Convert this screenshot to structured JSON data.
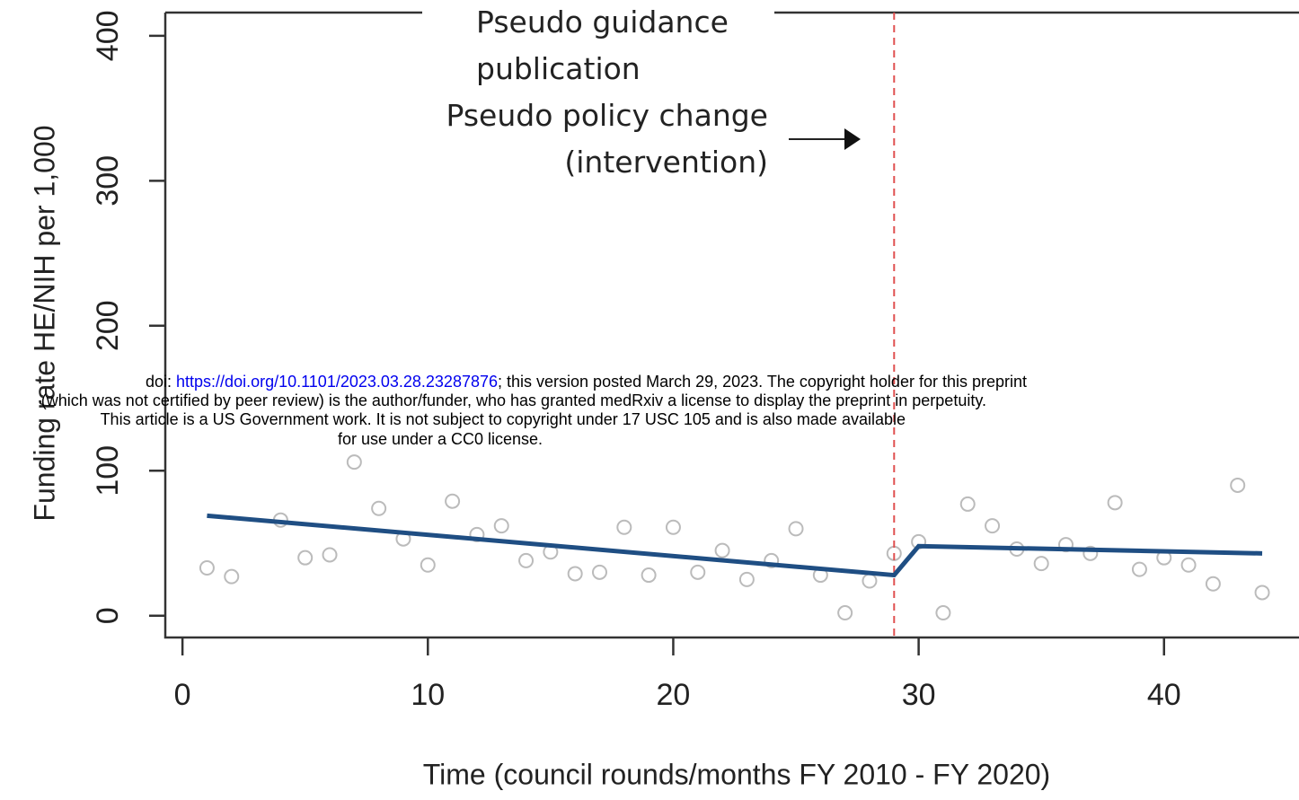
{
  "chart_data": {
    "type": "scatter",
    "ylabel": "Funding rate HE/NIH per 1,000",
    "xlabel": "Time (council rounds/months FY 2010 - FY 2020)",
    "xlim": [
      -0.7,
      45.5
    ],
    "ylim": [
      -15,
      416
    ],
    "xticks": [
      0,
      10,
      20,
      30,
      40
    ],
    "yticks": [
      0,
      100,
      200,
      300,
      400
    ],
    "x": [
      1,
      2,
      4,
      5,
      6,
      7,
      8,
      9,
      10,
      11,
      12,
      13,
      14,
      15,
      16,
      17,
      18,
      19,
      20,
      21,
      22,
      23,
      24,
      25,
      26,
      27,
      28,
      29,
      30,
      31,
      32,
      33,
      34,
      35,
      36,
      37,
      38,
      39,
      40,
      41,
      42,
      43,
      44
    ],
    "values": [
      33,
      27,
      66,
      40,
      42,
      106,
      74,
      53,
      35,
      79,
      56,
      62,
      38,
      44,
      29,
      30,
      61,
      28,
      61,
      30,
      45,
      25,
      38,
      60,
      28,
      2,
      24,
      43,
      51,
      2,
      77,
      62,
      46,
      36,
      49,
      43,
      78,
      32,
      40,
      35,
      22,
      90,
      16
    ],
    "point_color": "#bbbbbb",
    "fit": {
      "x": [
        1,
        29,
        30,
        44
      ],
      "values": [
        69,
        28,
        48,
        43
      ],
      "color": "#1f4e83"
    },
    "intervention": {
      "x": 29,
      "color": "#e05050"
    },
    "annotations": {
      "guidance": [
        "Pseudo guidance",
        "publication"
      ],
      "policy": [
        "Pseudo policy change",
        "(intervention)"
      ]
    }
  },
  "overlay": {
    "lines": [
      {
        "prefix": "doi: ",
        "link": "https://doi.org/10.1101/2023.03.28.23287876",
        "suffix": "; this version posted March 29, 2023. The copyright holder for this preprint"
      },
      "(which was not certified by peer review) is the author/funder, who has granted medRxiv a license to display the preprint in perpetuity.",
      "This article is a US Government work. It is not subject to copyright under 17 USC 105 and is also made available",
      "for use under a CC0 license."
    ]
  }
}
